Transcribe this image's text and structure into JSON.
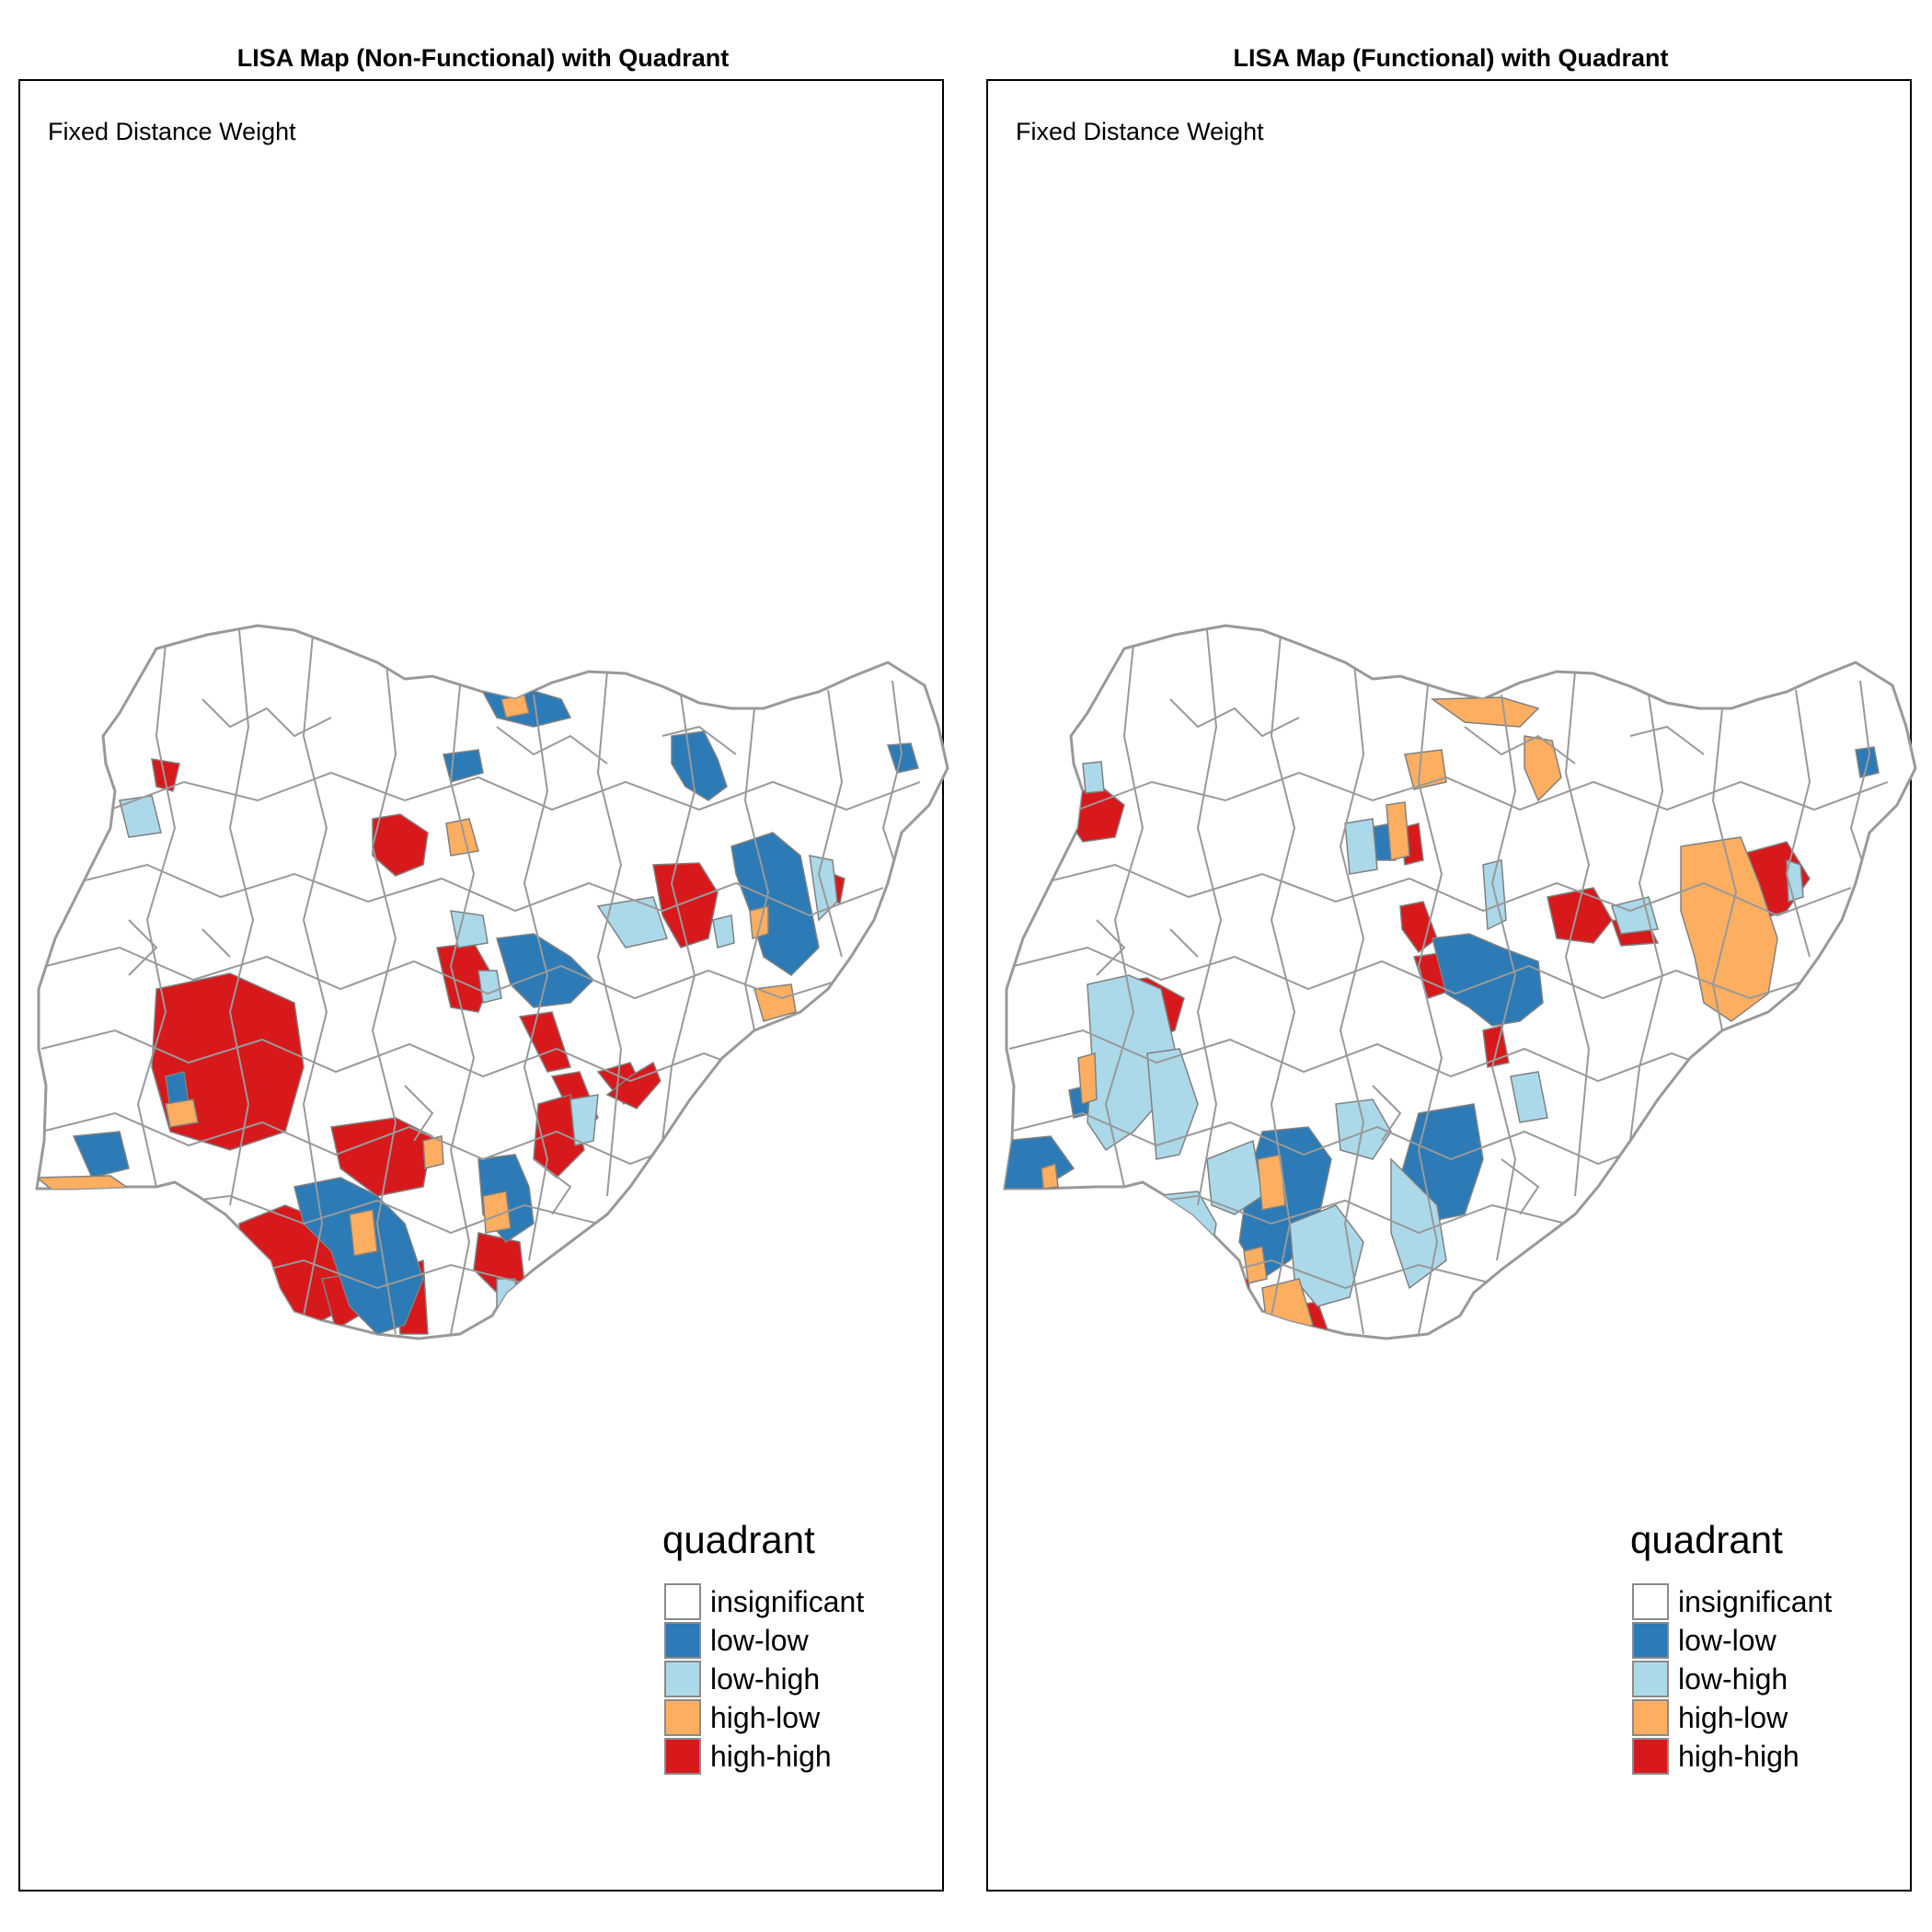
{
  "panels": [
    {
      "title": "LISA Map (Non-Functional) with Quadrant",
      "subtitle": "Fixed Distance Weight",
      "legend_title": "quadrant"
    },
    {
      "title": "LISA Map (Functional) with Quadrant",
      "subtitle": "Fixed Distance Weight",
      "legend_title": "quadrant"
    }
  ],
  "legend": [
    {
      "label": "insignificant",
      "color": "#ffffff"
    },
    {
      "label": "low-low",
      "color": "#2c7bb6"
    },
    {
      "label": "low-high",
      "color": "#abd9e9"
    },
    {
      "label": "high-low",
      "color": "#fdae61"
    },
    {
      "label": "high-high",
      "color": "#d7191c"
    }
  ],
  "colors": {
    "boundary": "#999999",
    "frame": "#000000"
  }
}
